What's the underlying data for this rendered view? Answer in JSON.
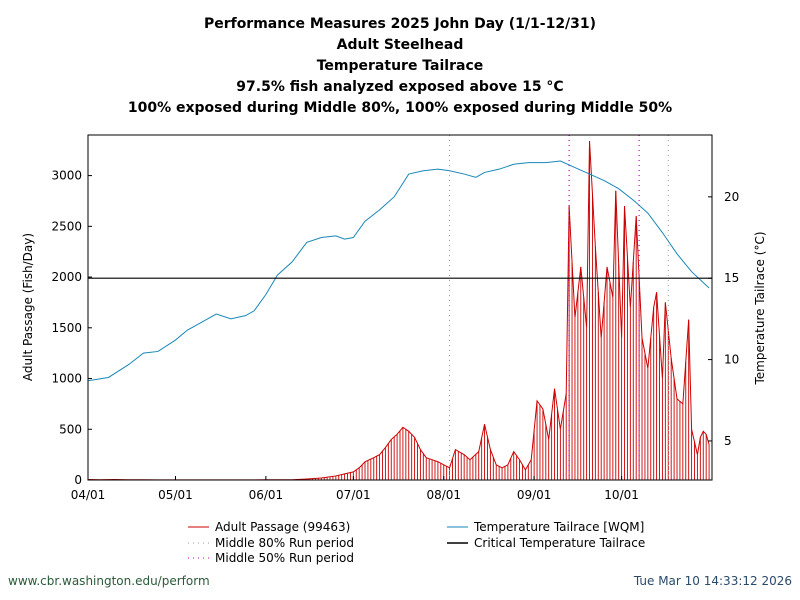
{
  "footer": {
    "left": "www.cbr.washington.edu/perform",
    "right": "Tue Mar 10 14:33:12 2026"
  },
  "colors": {
    "passage": "#cc0000",
    "temperature": "#1a87b8",
    "critical": "#000000",
    "middle80": "#999999",
    "middle50": "#cc00cc",
    "footer_left": "#2a5a3a",
    "footer_right": "#2a4a6a"
  },
  "chart_data": {
    "type": "line",
    "title_lines": [
      "Performance Measures 2025 John Day (1/1-12/31)",
      "Adult Steelhead",
      "Temperature Tailrace",
      "97.5% fish analyzed exposed above 15 °C",
      "100% exposed during Middle 80%, 100% exposed during Middle 50%"
    ],
    "xlabel": "",
    "ylabel_left": "Adult Passage (Fish/Day)",
    "ylabel_right": "Temperature Tailrace (°C)",
    "x_range": [
      "2025-04-01",
      "2025-10-31"
    ],
    "x_ticks": [
      {
        "date": "2025-04-01",
        "label": "04/01"
      },
      {
        "date": "2025-05-01",
        "label": "05/01"
      },
      {
        "date": "2025-06-01",
        "label": "06/01"
      },
      {
        "date": "2025-07-01",
        "label": "07/01"
      },
      {
        "date": "2025-08-01",
        "label": "08/01"
      },
      {
        "date": "2025-09-01",
        "label": "09/01"
      },
      {
        "date": "2025-10-01",
        "label": "10/01"
      }
    ],
    "y_left_range": [
      0,
      3400
    ],
    "y_left_ticks": [
      0,
      500,
      1000,
      1500,
      2000,
      2500,
      3000
    ],
    "y_right_range": [
      2.6,
      23.8
    ],
    "y_right_ticks": [
      5,
      10,
      15,
      20
    ],
    "critical_temperature": 15,
    "middle80_dates": [
      "2025-08-03",
      "2025-10-17"
    ],
    "middle50_dates": [
      "2025-09-13",
      "2025-10-07"
    ],
    "legend": [
      {
        "key": "passage",
        "label": "Adult Passage (99463)",
        "style": "line"
      },
      {
        "key": "middle80",
        "label": "Middle 80% Run period",
        "style": "dotted"
      },
      {
        "key": "middle50",
        "label": "Middle 50% Run period",
        "style": "dotted"
      },
      {
        "key": "temperature",
        "label": "Temperature Tailrace [WQM]",
        "style": "line"
      },
      {
        "key": "critical",
        "label": "Critical Temperature Tailrace",
        "style": "line"
      }
    ],
    "series": [
      {
        "name": "Adult Passage (99463)",
        "axis": "left",
        "points": [
          [
            "2025-04-01",
            5
          ],
          [
            "2025-04-05",
            3
          ],
          [
            "2025-04-10",
            5
          ],
          [
            "2025-04-15",
            2
          ],
          [
            "2025-04-20",
            2
          ],
          [
            "2025-04-25",
            1
          ],
          [
            "2025-05-01",
            1
          ],
          [
            "2025-05-10",
            1
          ],
          [
            "2025-05-20",
            1
          ],
          [
            "2025-06-01",
            2
          ],
          [
            "2025-06-10",
            3
          ],
          [
            "2025-06-15",
            10
          ],
          [
            "2025-06-20",
            20
          ],
          [
            "2025-06-25",
            40
          ],
          [
            "2025-06-28",
            60
          ],
          [
            "2025-07-01",
            80
          ],
          [
            "2025-07-03",
            120
          ],
          [
            "2025-07-05",
            180
          ],
          [
            "2025-07-08",
            220
          ],
          [
            "2025-07-10",
            250
          ],
          [
            "2025-07-12",
            320
          ],
          [
            "2025-07-14",
            400
          ],
          [
            "2025-07-16",
            450
          ],
          [
            "2025-07-18",
            520
          ],
          [
            "2025-07-20",
            480
          ],
          [
            "2025-07-22",
            420
          ],
          [
            "2025-07-24",
            300
          ],
          [
            "2025-07-26",
            220
          ],
          [
            "2025-07-28",
            200
          ],
          [
            "2025-07-30",
            180
          ],
          [
            "2025-08-01",
            150
          ],
          [
            "2025-08-03",
            120
          ],
          [
            "2025-08-05",
            300
          ],
          [
            "2025-08-08",
            250
          ],
          [
            "2025-08-10",
            200
          ],
          [
            "2025-08-13",
            280
          ],
          [
            "2025-08-15",
            550
          ],
          [
            "2025-08-17",
            300
          ],
          [
            "2025-08-19",
            150
          ],
          [
            "2025-08-21",
            120
          ],
          [
            "2025-08-23",
            150
          ],
          [
            "2025-08-25",
            280
          ],
          [
            "2025-08-27",
            200
          ],
          [
            "2025-08-29",
            100
          ],
          [
            "2025-08-31",
            200
          ],
          [
            "2025-09-02",
            780
          ],
          [
            "2025-09-04",
            700
          ],
          [
            "2025-09-06",
            400
          ],
          [
            "2025-09-08",
            900
          ],
          [
            "2025-09-10",
            500
          ],
          [
            "2025-09-12",
            850
          ],
          [
            "2025-09-13",
            2700
          ],
          [
            "2025-09-15",
            1600
          ],
          [
            "2025-09-17",
            2100
          ],
          [
            "2025-09-19",
            1500
          ],
          [
            "2025-09-20",
            3340
          ],
          [
            "2025-09-22",
            2300
          ],
          [
            "2025-09-24",
            1400
          ],
          [
            "2025-09-26",
            2100
          ],
          [
            "2025-09-28",
            1800
          ],
          [
            "2025-09-29",
            2850
          ],
          [
            "2025-10-01",
            1400
          ],
          [
            "2025-10-02",
            2700
          ],
          [
            "2025-10-04",
            1700
          ],
          [
            "2025-10-06",
            2600
          ],
          [
            "2025-10-08",
            1400
          ],
          [
            "2025-10-10",
            1100
          ],
          [
            "2025-10-12",
            1700
          ],
          [
            "2025-10-13",
            1850
          ],
          [
            "2025-10-15",
            1000
          ],
          [
            "2025-10-16",
            1750
          ],
          [
            "2025-10-18",
            1200
          ],
          [
            "2025-10-20",
            800
          ],
          [
            "2025-10-22",
            750
          ],
          [
            "2025-10-24",
            1580
          ],
          [
            "2025-10-25",
            500
          ],
          [
            "2025-10-27",
            250
          ],
          [
            "2025-10-28",
            420
          ],
          [
            "2025-10-29",
            480
          ],
          [
            "2025-10-30",
            450
          ],
          [
            "2025-10-31",
            350
          ]
        ]
      },
      {
        "name": "Temperature Tailrace [WQM]",
        "axis": "right",
        "points": [
          [
            "2025-04-01",
            8.7
          ],
          [
            "2025-04-08",
            8.9
          ],
          [
            "2025-04-15",
            9.7
          ],
          [
            "2025-04-20",
            10.4
          ],
          [
            "2025-04-25",
            10.5
          ],
          [
            "2025-05-01",
            11.2
          ],
          [
            "2025-05-05",
            11.8
          ],
          [
            "2025-05-10",
            12.3
          ],
          [
            "2025-05-15",
            12.8
          ],
          [
            "2025-05-20",
            12.5
          ],
          [
            "2025-05-25",
            12.7
          ],
          [
            "2025-05-28",
            13.0
          ],
          [
            "2025-06-01",
            14.0
          ],
          [
            "2025-06-05",
            15.2
          ],
          [
            "2025-06-10",
            16.0
          ],
          [
            "2025-06-15",
            17.2
          ],
          [
            "2025-06-20",
            17.5
          ],
          [
            "2025-06-25",
            17.6
          ],
          [
            "2025-06-28",
            17.4
          ],
          [
            "2025-07-01",
            17.5
          ],
          [
            "2025-07-05",
            18.5
          ],
          [
            "2025-07-10",
            19.2
          ],
          [
            "2025-07-15",
            20.0
          ],
          [
            "2025-07-20",
            21.4
          ],
          [
            "2025-07-25",
            21.6
          ],
          [
            "2025-07-30",
            21.7
          ],
          [
            "2025-08-03",
            21.6
          ],
          [
            "2025-08-08",
            21.4
          ],
          [
            "2025-08-12",
            21.2
          ],
          [
            "2025-08-15",
            21.5
          ],
          [
            "2025-08-20",
            21.7
          ],
          [
            "2025-08-25",
            22.0
          ],
          [
            "2025-08-30",
            22.1
          ],
          [
            "2025-09-05",
            22.1
          ],
          [
            "2025-09-10",
            22.2
          ],
          [
            "2025-09-15",
            21.8
          ],
          [
            "2025-09-20",
            21.4
          ],
          [
            "2025-09-25",
            21.0
          ],
          [
            "2025-09-30",
            20.5
          ],
          [
            "2025-10-05",
            19.8
          ],
          [
            "2025-10-10",
            19.0
          ],
          [
            "2025-10-15",
            17.8
          ],
          [
            "2025-10-20",
            16.5
          ],
          [
            "2025-10-25",
            15.4
          ],
          [
            "2025-10-31",
            14.4
          ]
        ]
      }
    ]
  }
}
